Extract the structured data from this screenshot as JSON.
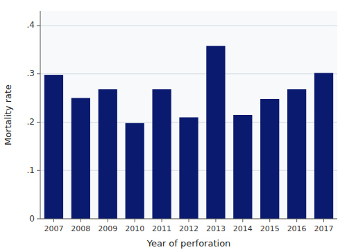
{
  "chart_data": {
    "type": "bar",
    "xlabel": "Year of perforation",
    "ylabel": "Mortality rate",
    "categories": [
      "2007",
      "2008",
      "2009",
      "2010",
      "2011",
      "2012",
      "2013",
      "2014",
      "2015",
      "2016",
      "2017"
    ],
    "values": [
      0.298,
      0.25,
      0.268,
      0.198,
      0.268,
      0.21,
      0.358,
      0.215,
      0.248,
      0.268,
      0.302
    ],
    "color": "#0a1a6e",
    "ylim": [
      0,
      0.43
    ],
    "yticks": [
      0,
      {
        "value": 0.1,
        "label": ".1"
      },
      {
        "value": 0.2,
        "label": ".2"
      },
      {
        "value": 0.3,
        "label": ".3"
      },
      {
        "value": 0.4,
        "label": ".4"
      }
    ],
    "grid": true
  }
}
